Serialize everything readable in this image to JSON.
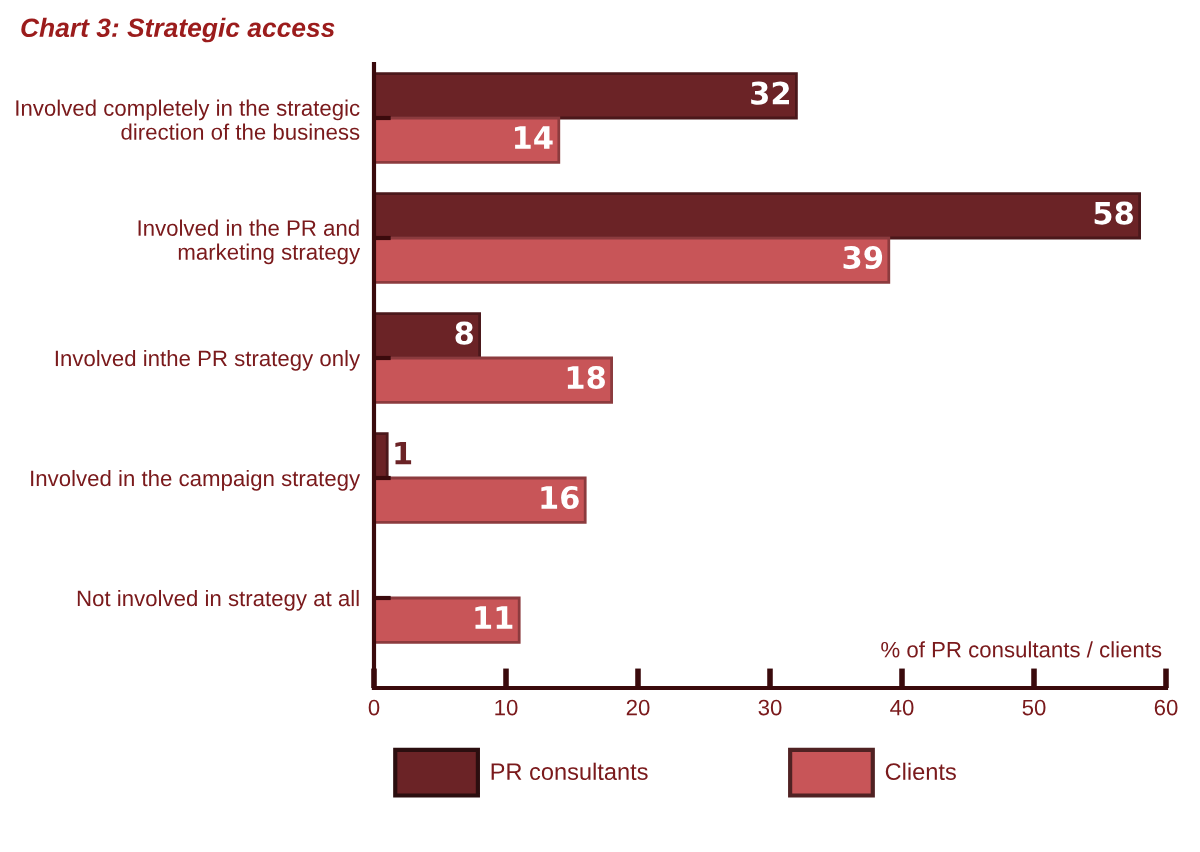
{
  "chart_data": {
    "type": "bar",
    "orientation": "horizontal",
    "title": "Chart 3: Strategic access",
    "xlabel": "% of PR consultants / clients",
    "categories": [
      "Involved completely in the strategic\ndirection of the business",
      "Involved in the PR and\nmarketing strategy",
      "Involved inthe PR strategy only",
      "Involved in the campaign strategy",
      "Not involved in strategy at all"
    ],
    "series": [
      {
        "name": "PR consultants",
        "color": "#6b2326",
        "values": [
          32,
          58,
          8,
          1,
          null
        ]
      },
      {
        "name": "Clients",
        "color": "#c85558",
        "values": [
          14,
          39,
          18,
          16,
          11
        ]
      }
    ],
    "xlim": [
      0,
      60
    ],
    "xticks": [
      0,
      10,
      20,
      30,
      40,
      50,
      60
    ],
    "data_labels": true,
    "legend": "bottom",
    "grid": false
  }
}
